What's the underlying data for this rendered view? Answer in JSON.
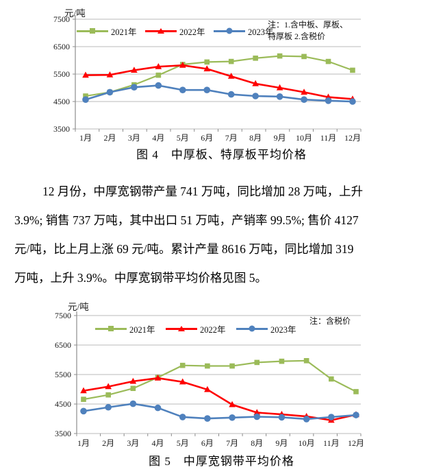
{
  "figures": {
    "figure4": {
      "unit": "元/吨",
      "note": "注：1.含中板、厚板、\n特厚板  2.含税价",
      "caption": "图 4　中厚板、特厚板平均价格"
    },
    "figure5": {
      "unit": "元/吨",
      "note": "注：含税价",
      "caption": "图 5　中厚宽钢带平均价格"
    }
  },
  "paragraph": {
    "lines": [
      "12 月份，中厚宽钢带产量 741 万吨，同比增加 28 万吨，上升",
      "3.9%; 销售 737 万吨，其中出口 51 万吨，产销率 99.5%; 售价 4127",
      "元/吨，比上月上涨 69 元/吨。累计产量 8616 万吨，同比增加 319",
      "万吨，上升 3.9%。中厚宽钢带平均价格见图 5。"
    ]
  },
  "chart_data": [
    {
      "id": "figure4",
      "type": "line",
      "title": "图4 中厚板、特厚板平均价格",
      "ylabel": "元/吨",
      "ylim": [
        3500,
        7500
      ],
      "yticks": [
        7500,
        6500,
        5500,
        4500,
        3500
      ],
      "grid": true,
      "legend_position": "top-inside",
      "note": "注：1.含中板、厚板、特厚板 2.含税价",
      "categories": [
        "1月",
        "2月",
        "3月",
        "4月",
        "5月",
        "6月",
        "7月",
        "8月",
        "9月",
        "10月",
        "11月",
        "12月"
      ],
      "series": [
        {
          "name": "2021年",
          "color": "#9BBB59",
          "marker": "square",
          "values": [
            4700,
            4840,
            5110,
            5460,
            5850,
            5940,
            5960,
            6080,
            6160,
            6140,
            5960,
            5640
          ]
        },
        {
          "name": "2022年",
          "color": "#FE0000",
          "marker": "triangle",
          "values": [
            5460,
            5470,
            5640,
            5770,
            5820,
            5690,
            5420,
            5150,
            5000,
            4840,
            4660,
            4590
          ]
        },
        {
          "name": "2023年",
          "color": "#4F81BD",
          "marker": "circle",
          "values": [
            4570,
            4840,
            5020,
            5085,
            4920,
            4920,
            4760,
            4700,
            4680,
            4570,
            4530,
            4500
          ]
        }
      ]
    },
    {
      "id": "figure5",
      "type": "line",
      "title": "图5 中厚宽钢带平均价格",
      "ylabel": "元/吨",
      "ylim": [
        3500,
        7500
      ],
      "yticks": [
        7500,
        6500,
        5500,
        4500,
        3500
      ],
      "grid": true,
      "legend_position": "top-inside",
      "note": "注：含税价",
      "categories": [
        "1月",
        "2月",
        "3月",
        "4月",
        "5月",
        "6月",
        "7月",
        "8月",
        "9月",
        "10月",
        "11月",
        "12月"
      ],
      "series": [
        {
          "name": "2021年",
          "color": "#9BBB59",
          "marker": "square",
          "values": [
            4660,
            4810,
            5030,
            5400,
            5810,
            5790,
            5790,
            5910,
            5950,
            5970,
            5350,
            4920
          ]
        },
        {
          "name": "2022年",
          "color": "#FE0000",
          "marker": "triangle",
          "values": [
            4950,
            5090,
            5270,
            5380,
            5250,
            4990,
            4480,
            4210,
            4150,
            4080,
            3950,
            4140
          ]
        },
        {
          "name": "2023年",
          "color": "#4F81BD",
          "marker": "circle",
          "values": [
            4260,
            4390,
            4510,
            4370,
            4060,
            4010,
            4040,
            4070,
            4050,
            3990,
            4058,
            4127
          ]
        }
      ]
    }
  ]
}
